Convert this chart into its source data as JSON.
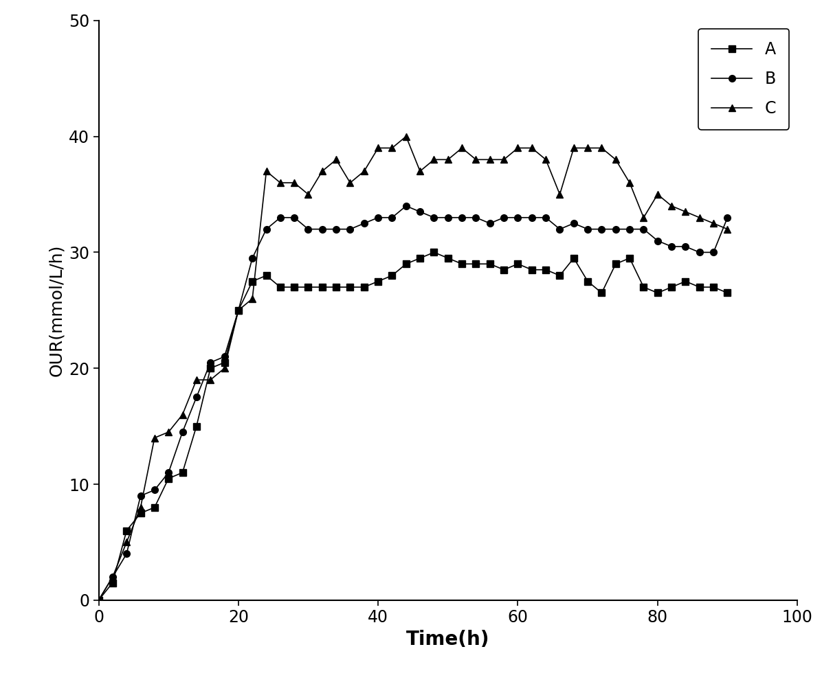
{
  "series_A": {
    "label": "A",
    "marker": "s",
    "x": [
      0,
      2,
      4,
      6,
      8,
      10,
      12,
      14,
      16,
      18,
      20,
      22,
      24,
      26,
      28,
      30,
      32,
      34,
      36,
      38,
      40,
      42,
      44,
      46,
      48,
      50,
      52,
      54,
      56,
      58,
      60,
      62,
      64,
      66,
      68,
      70,
      72,
      74,
      76,
      78,
      80,
      82,
      84,
      86,
      88,
      90
    ],
    "y": [
      0,
      1.5,
      6,
      7.5,
      8,
      10.5,
      11,
      15,
      20,
      20.5,
      25,
      27.5,
      28,
      27,
      27,
      27,
      27,
      27,
      27,
      27,
      27.5,
      28,
      29,
      29.5,
      30,
      29.5,
      29,
      29,
      29,
      28.5,
      29,
      28.5,
      28.5,
      28,
      29.5,
      27.5,
      26.5,
      29,
      29.5,
      27,
      26.5,
      27,
      27.5,
      27,
      27,
      26.5
    ]
  },
  "series_B": {
    "label": "B",
    "marker": "o",
    "x": [
      0,
      2,
      4,
      6,
      8,
      10,
      12,
      14,
      16,
      18,
      20,
      22,
      24,
      26,
      28,
      30,
      32,
      34,
      36,
      38,
      40,
      42,
      44,
      46,
      48,
      50,
      52,
      54,
      56,
      58,
      60,
      62,
      64,
      66,
      68,
      70,
      72,
      74,
      76,
      78,
      80,
      82,
      84,
      86,
      88,
      90
    ],
    "y": [
      0,
      2,
      4,
      9,
      9.5,
      11,
      14.5,
      17.5,
      20.5,
      21,
      25,
      29.5,
      32,
      33,
      33,
      32,
      32,
      32,
      32,
      32.5,
      33,
      33,
      34,
      33.5,
      33,
      33,
      33,
      33,
      32.5,
      33,
      33,
      33,
      33,
      32,
      32.5,
      32,
      32,
      32,
      32,
      32,
      31,
      30.5,
      30.5,
      30,
      30,
      33
    ]
  },
  "series_C": {
    "label": "C",
    "marker": "^",
    "x": [
      0,
      2,
      4,
      6,
      8,
      10,
      12,
      14,
      16,
      18,
      20,
      22,
      24,
      26,
      28,
      30,
      32,
      34,
      36,
      38,
      40,
      42,
      44,
      46,
      48,
      50,
      52,
      54,
      56,
      58,
      60,
      62,
      64,
      66,
      68,
      70,
      72,
      74,
      76,
      78,
      80,
      82,
      84,
      86,
      88,
      90
    ],
    "y": [
      0,
      2,
      5,
      8,
      14,
      14.5,
      16,
      19,
      19,
      20,
      25,
      26,
      37,
      36,
      36,
      35,
      37,
      38,
      36,
      37,
      39,
      39,
      40,
      37,
      38,
      38,
      39,
      38,
      38,
      38,
      39,
      39,
      38,
      35,
      39,
      39,
      39,
      38,
      36,
      33,
      35,
      34,
      33.5,
      33,
      32.5,
      32
    ]
  },
  "xlabel": "Time(h)",
  "ylabel": "OUR(mmol/L/h)",
  "xlim": [
    0,
    100
  ],
  "ylim": [
    0,
    50
  ],
  "xticks": [
    0,
    20,
    40,
    60,
    80,
    100
  ],
  "yticks": [
    0,
    10,
    20,
    30,
    40,
    50
  ],
  "line_color": "#000000",
  "marker_color": "#000000",
  "markersize": 7,
  "linewidth": 1.2,
  "legend_loc": "upper right",
  "xlabel_fontsize": 20,
  "ylabel_fontsize": 18,
  "tick_fontsize": 17,
  "legend_fontsize": 17
}
